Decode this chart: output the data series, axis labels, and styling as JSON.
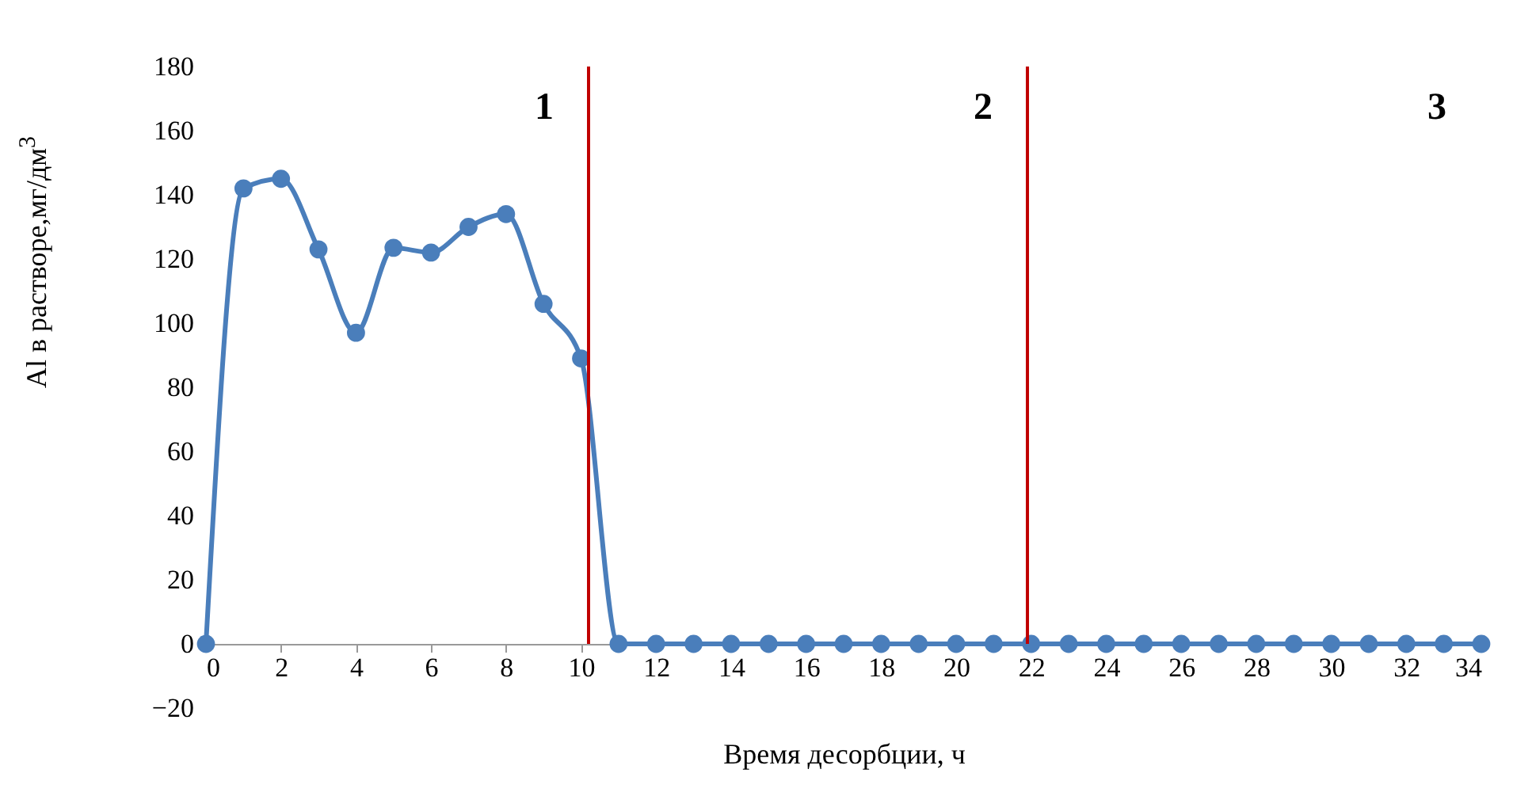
{
  "chart_data": {
    "type": "line",
    "xlabel": "Время десорбции, ч",
    "ylabel": "Al в растворе,мг/дм$^{3}$",
    "x": [
      0,
      1,
      2,
      3,
      4,
      5,
      6,
      7,
      8,
      9,
      10,
      11,
      12,
      13,
      14,
      15,
      16,
      17,
      18,
      19,
      20,
      21,
      22,
      23,
      24,
      25,
      26,
      27,
      28,
      29,
      30,
      31,
      32,
      33,
      34
    ],
    "series": [
      {
        "color": "#4a7ebb",
        "values": [
          0,
          142,
          145,
          123,
          97,
          123.5,
          122,
          130,
          134,
          106,
          89,
          0,
          0,
          0,
          0,
          0,
          0,
          0,
          0,
          0,
          0,
          0,
          0,
          0,
          0,
          0,
          0,
          0,
          0,
          0,
          0,
          0,
          0,
          0,
          0
        ]
      }
    ],
    "xlim": [
      0,
      34
    ],
    "xticks": [
      0,
      2,
      4,
      6,
      8,
      10,
      12,
      14,
      16,
      18,
      20,
      22,
      24,
      26,
      28,
      30,
      32,
      34
    ],
    "ylim": [
      -20,
      180
    ],
    "yticks": [
      -20,
      0,
      20,
      40,
      60,
      80,
      100,
      120,
      140,
      160,
      180
    ],
    "ref_lines": [
      {
        "axis": "x",
        "value": 10.2,
        "color": "#c00000"
      },
      {
        "axis": "x",
        "value": 21.9,
        "color": "#c00000"
      }
    ],
    "annotations": [
      "1",
      "2",
      "3"
    ],
    "marker": "circle",
    "line_style": "solid",
    "grid": false
  }
}
